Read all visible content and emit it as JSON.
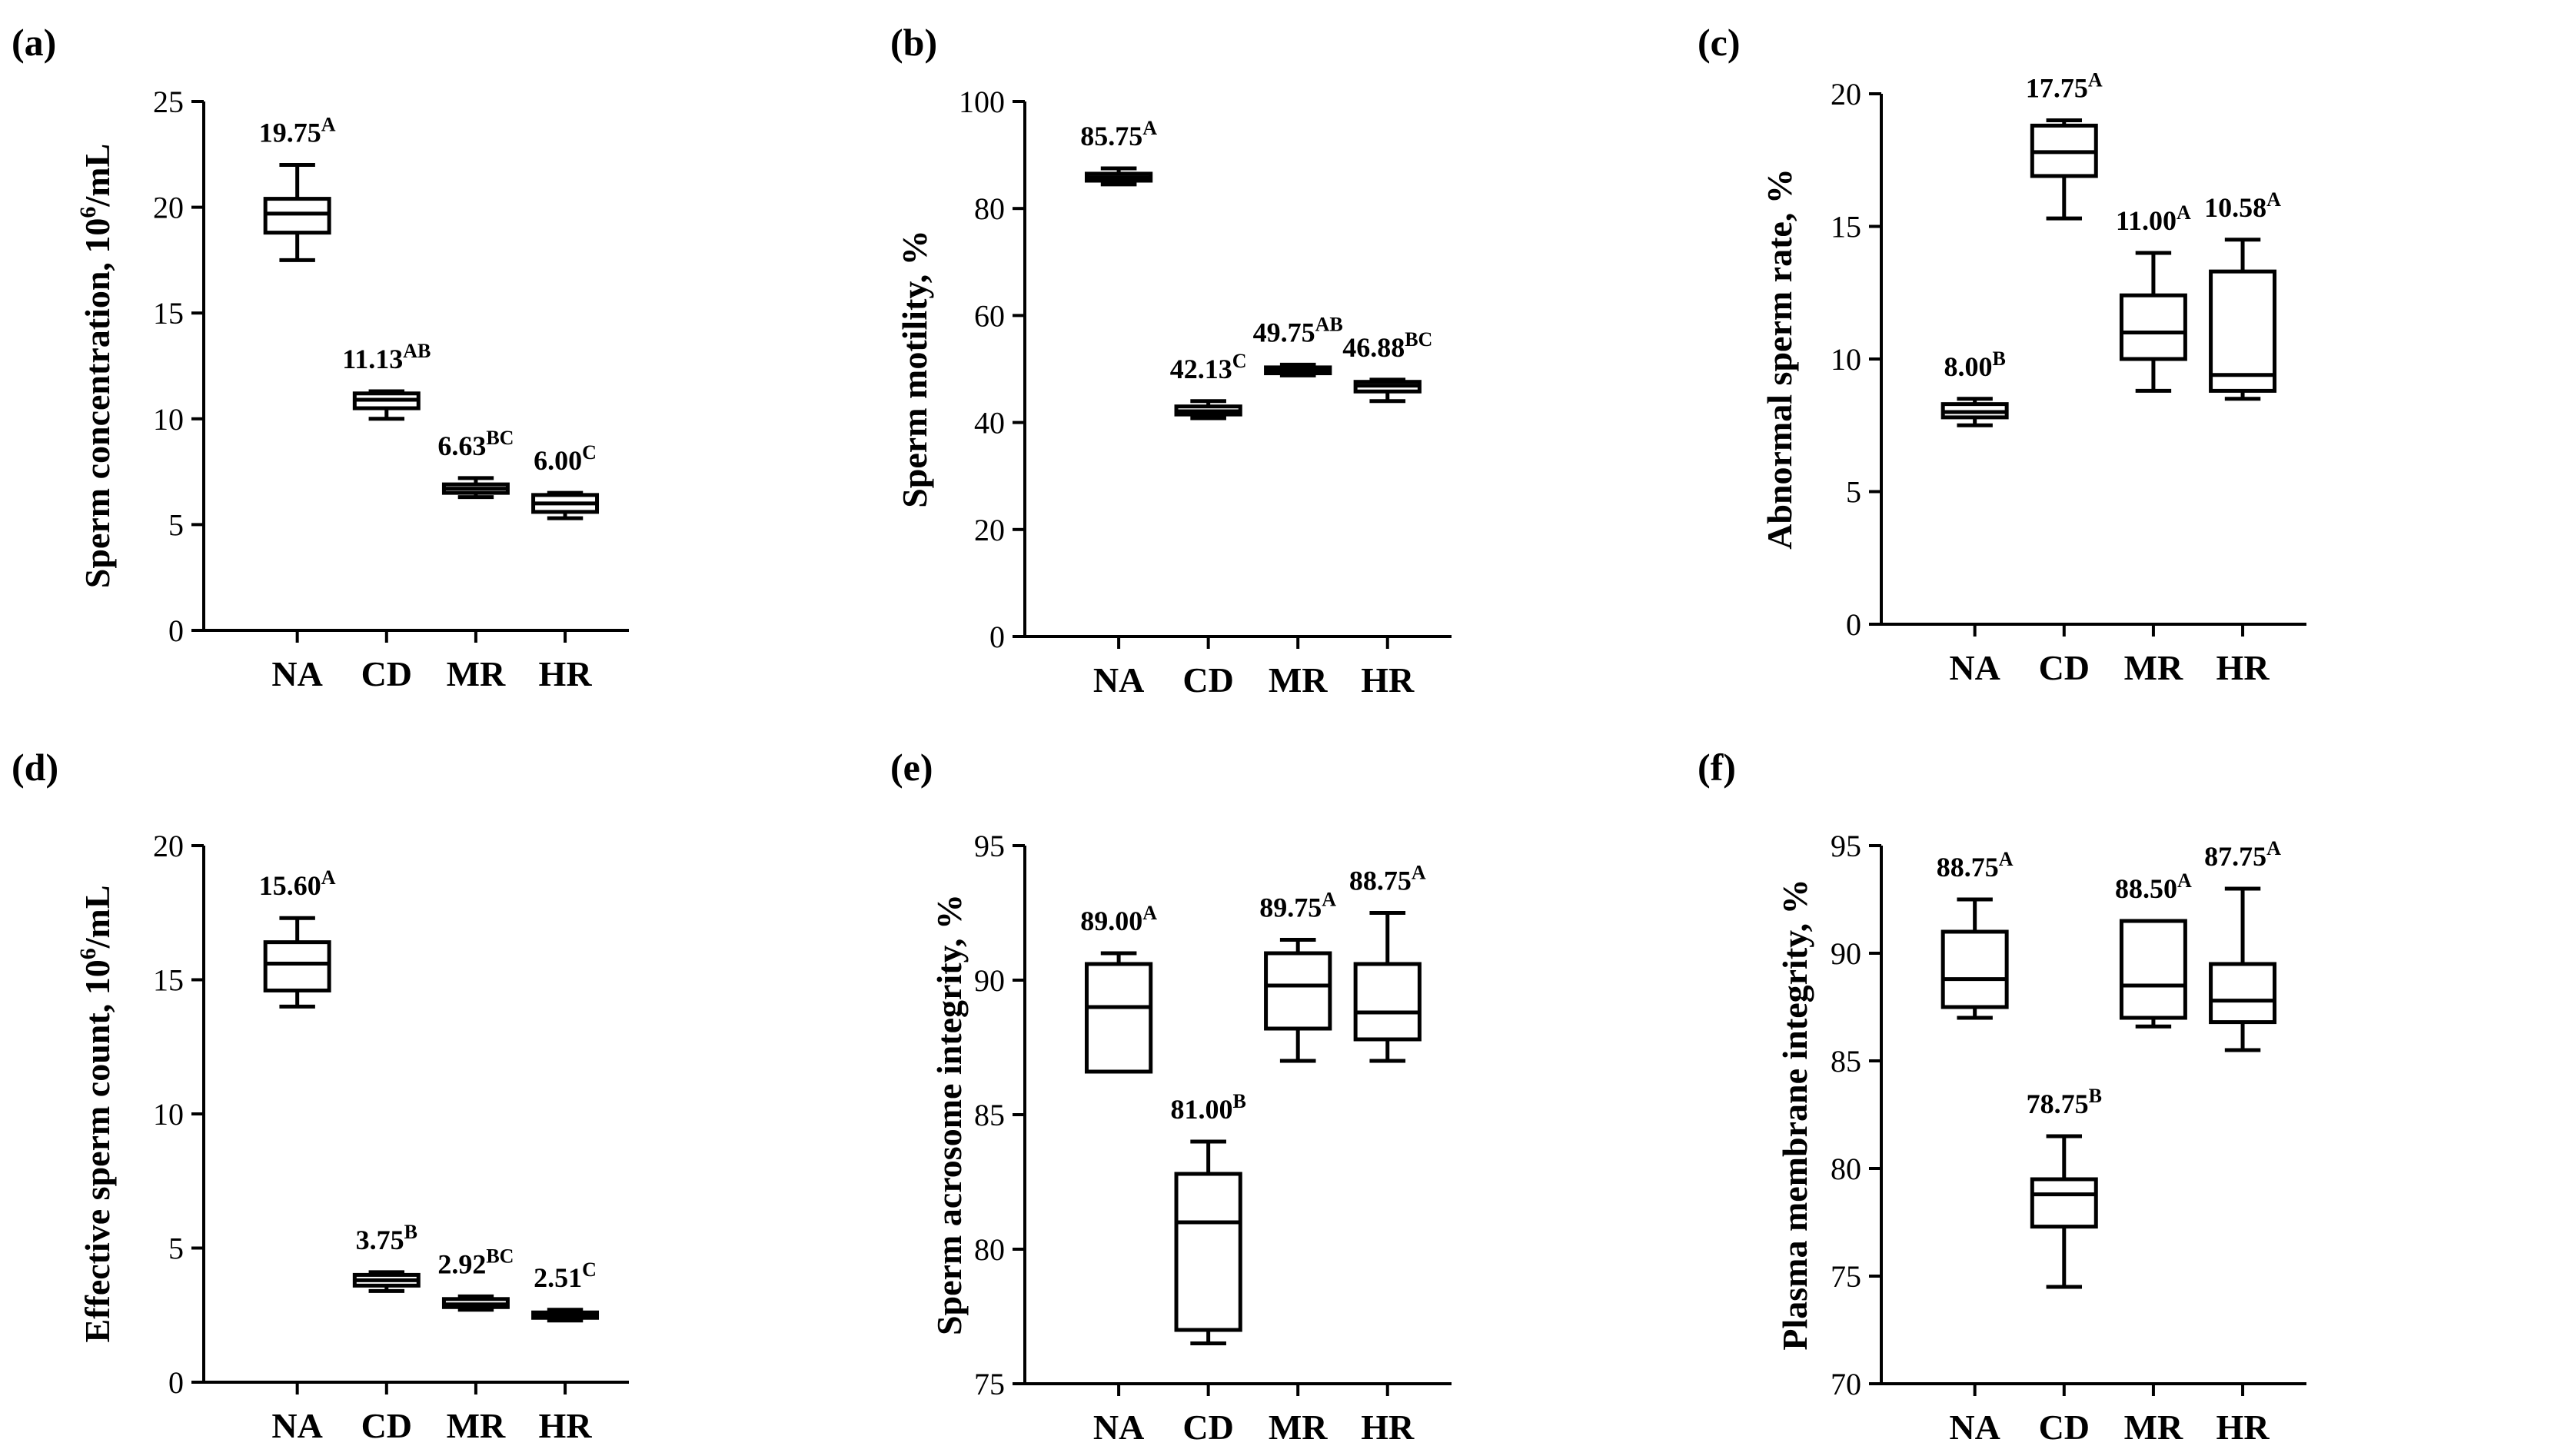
{
  "chart_data": [
    {
      "type": "boxplot",
      "panel_label": "(a)",
      "ylabel_parts": [
        "Sperm  concentration, 10",
        "6",
        "/mL"
      ],
      "ylim": [
        0,
        25
      ],
      "yticks": [
        0,
        5,
        10,
        15,
        20,
        25
      ],
      "categories": [
        "NA",
        "CD",
        "MR",
        "HR"
      ],
      "boxes": [
        {
          "min": 17.5,
          "q1": 18.8,
          "median": 19.7,
          "q3": 20.4,
          "max": 22.0
        },
        {
          "min": 10.0,
          "q1": 10.5,
          "median": 10.9,
          "q3": 11.2,
          "max": 11.3
        },
        {
          "min": 6.3,
          "q1": 6.5,
          "median": 6.7,
          "q3": 6.9,
          "max": 7.2
        },
        {
          "min": 5.3,
          "q1": 5.6,
          "median": 6.0,
          "q3": 6.4,
          "max": 6.5
        }
      ],
      "labels": [
        {
          "text": "19.75",
          "sup": "A"
        },
        {
          "text": "11.13",
          "sup": "AB"
        },
        {
          "text": "6.63",
          "sup": "BC"
        },
        {
          "text": "6.00",
          "sup": "C"
        }
      ]
    },
    {
      "type": "boxplot",
      "panel_label": "(b)",
      "ylabel_parts": [
        "Sperm motility, %",
        "",
        ""
      ],
      "ylim": [
        0,
        100
      ],
      "yticks": [
        0,
        20,
        40,
        60,
        80,
        100
      ],
      "categories": [
        "NA",
        "CD",
        "MR",
        "HR"
      ],
      "boxes": [
        {
          "min": 84.5,
          "q1": 85.2,
          "median": 85.8,
          "q3": 86.5,
          "max": 87.5
        },
        {
          "min": 40.8,
          "q1": 41.5,
          "median": 42.1,
          "q3": 43.0,
          "max": 44.0
        },
        {
          "min": 48.8,
          "q1": 49.2,
          "median": 49.7,
          "q3": 50.3,
          "max": 50.8
        },
        {
          "min": 44.0,
          "q1": 45.8,
          "median": 46.9,
          "q3": 47.6,
          "max": 48.0
        }
      ],
      "labels": [
        {
          "text": "85.75",
          "sup": "A"
        },
        {
          "text": "42.13",
          "sup": "C"
        },
        {
          "text": "49.75",
          "sup": "AB"
        },
        {
          "text": "46.88",
          "sup": "BC"
        }
      ]
    },
    {
      "type": "boxplot",
      "panel_label": "(c)",
      "ylabel_parts": [
        "Abnormal sperm rate, %",
        "",
        ""
      ],
      "ylim": [
        0,
        20
      ],
      "yticks": [
        0,
        5,
        10,
        15,
        20
      ],
      "categories": [
        "NA",
        "CD",
        "MR",
        "HR"
      ],
      "boxes": [
        {
          "min": 7.5,
          "q1": 7.8,
          "median": 8.0,
          "q3": 8.3,
          "max": 8.5
        },
        {
          "min": 15.3,
          "q1": 16.9,
          "median": 17.8,
          "q3": 18.8,
          "max": 19.0
        },
        {
          "min": 8.8,
          "q1": 10.0,
          "median": 11.0,
          "q3": 12.4,
          "max": 14.0
        },
        {
          "min": 8.5,
          "q1": 8.8,
          "median": 9.4,
          "q3": 13.3,
          "max": 14.5
        }
      ],
      "labels": [
        {
          "text": "8.00",
          "sup": "B"
        },
        {
          "text": "17.75",
          "sup": "A"
        },
        {
          "text": "11.00",
          "sup": "A"
        },
        {
          "text": "10.58",
          "sup": "A"
        }
      ]
    },
    {
      "type": "boxplot",
      "panel_label": "(d)",
      "ylabel_parts": [
        "Effective sperm count, 10",
        "6",
        "/mL"
      ],
      "ylim": [
        0,
        20
      ],
      "yticks": [
        0,
        5,
        10,
        15,
        20
      ],
      "categories": [
        "NA",
        "CD",
        "MR",
        "HR"
      ],
      "boxes": [
        {
          "min": 14.0,
          "q1": 14.6,
          "median": 15.6,
          "q3": 16.4,
          "max": 17.3
        },
        {
          "min": 3.4,
          "q1": 3.6,
          "median": 3.8,
          "q3": 4.0,
          "max": 4.1
        },
        {
          "min": 2.7,
          "q1": 2.8,
          "median": 2.9,
          "q3": 3.1,
          "max": 3.2
        },
        {
          "min": 2.3,
          "q1": 2.4,
          "median": 2.5,
          "q3": 2.6,
          "max": 2.7
        }
      ],
      "labels": [
        {
          "text": "15.60",
          "sup": "A"
        },
        {
          "text": "3.75",
          "sup": "B"
        },
        {
          "text": "2.92",
          "sup": "BC"
        },
        {
          "text": "2.51",
          "sup": "C"
        }
      ]
    },
    {
      "type": "boxplot",
      "panel_label": "(e)",
      "ylabel_parts": [
        "Sperm acrosome integrity, %",
        "",
        ""
      ],
      "ylim": [
        75,
        95
      ],
      "yticks": [
        75,
        80,
        85,
        90,
        95
      ],
      "categories": [
        "NA",
        "CD",
        "MR",
        "HR"
      ],
      "boxes": [
        {
          "min": 86.6,
          "q1": 86.6,
          "median": 89.0,
          "q3": 90.6,
          "max": 91.0
        },
        {
          "min": 76.5,
          "q1": 77.0,
          "median": 81.0,
          "q3": 82.8,
          "max": 84.0
        },
        {
          "min": 87.0,
          "q1": 88.2,
          "median": 89.8,
          "q3": 91.0,
          "max": 91.5
        },
        {
          "min": 87.0,
          "q1": 87.8,
          "median": 88.8,
          "q3": 90.6,
          "max": 92.5
        }
      ],
      "labels": [
        {
          "text": "89.00",
          "sup": "A"
        },
        {
          "text": "81.00",
          "sup": "B"
        },
        {
          "text": "89.75",
          "sup": "A"
        },
        {
          "text": "88.75",
          "sup": "A"
        }
      ]
    },
    {
      "type": "boxplot",
      "panel_label": "(f)",
      "ylabel_parts": [
        "Plasma membrane integrity, %",
        "",
        ""
      ],
      "ylim": [
        70,
        95
      ],
      "yticks": [
        70,
        75,
        80,
        85,
        90,
        95
      ],
      "categories": [
        "NA",
        "CD",
        "MR",
        "HR"
      ],
      "boxes": [
        {
          "min": 87.0,
          "q1": 87.5,
          "median": 88.8,
          "q3": 91.0,
          "max": 92.5
        },
        {
          "min": 74.5,
          "q1": 77.3,
          "median": 78.8,
          "q3": 79.5,
          "max": 81.5
        },
        {
          "min": 86.6,
          "q1": 87.0,
          "median": 88.5,
          "q3": 91.5,
          "max": 91.5
        },
        {
          "min": 85.5,
          "q1": 86.8,
          "median": 87.8,
          "q3": 89.5,
          "max": 93.0
        }
      ],
      "labels": [
        {
          "text": "88.75",
          "sup": "A"
        },
        {
          "text": "78.75",
          "sup": "B"
        },
        {
          "text": "88.50",
          "sup": "A"
        },
        {
          "text": "87.75",
          "sup": "A"
        }
      ]
    }
  ]
}
